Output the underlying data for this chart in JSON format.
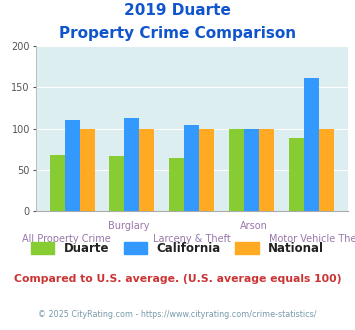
{
  "title_line1": "2019 Duarte",
  "title_line2": "Property Crime Comparison",
  "category_labels_top": [
    "",
    "Burglary",
    "",
    "Arson",
    ""
  ],
  "category_labels_bottom": [
    "All Property Crime",
    "",
    "Larceny & Theft",
    "",
    "Motor Vehicle Theft"
  ],
  "groups": [
    "Duarte",
    "California",
    "National"
  ],
  "values": {
    "Duarte": [
      68,
      67,
      65,
      100,
      89
    ],
    "California": [
      110,
      113,
      104,
      100,
      162
    ],
    "National": [
      100,
      100,
      100,
      100,
      100
    ]
  },
  "colors": {
    "Duarte": "#88cc33",
    "California": "#3399ff",
    "National": "#ffaa22"
  },
  "ylim": [
    0,
    200
  ],
  "yticks": [
    0,
    50,
    100,
    150,
    200
  ],
  "background_color": "#ddeef0",
  "title_color": "#1155cc",
  "xlabel_top_color": "#9977aa",
  "xlabel_bot_color": "#9977aa",
  "footer_text": "Compared to U.S. average. (U.S. average equals 100)",
  "footer_color": "#cc3333",
  "credit_text": "© 2025 CityRating.com - https://www.cityrating.com/crime-statistics/",
  "credit_color": "#7799aa",
  "bar_width": 0.25
}
